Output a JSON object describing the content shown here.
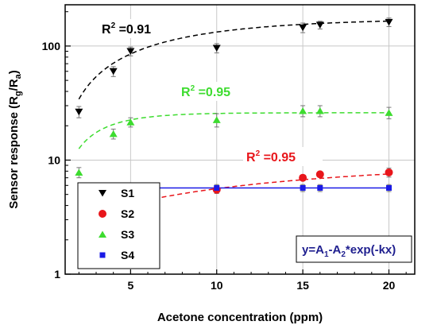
{
  "chart_data": {
    "type": "scatter",
    "title": "",
    "xlabel": "Acetone concentration (ppm)",
    "ylabel": {
      "main": "Sensor response (R",
      "sub1": "g",
      "mid": "/R",
      "sub2": "a",
      "end": ")"
    },
    "x_ticks": [
      5,
      10,
      15,
      20
    ],
    "y_ticks": [
      {
        "value": 1,
        "label": "1"
      },
      {
        "value": 10,
        "label": "10"
      },
      {
        "value": 100,
        "label": "100"
      }
    ],
    "xlim": [
      1.2,
      21.5
    ],
    "ylim": [
      1,
      230
    ],
    "y_scale": "log",
    "grid": true,
    "legend_position": "bottom-left",
    "series": [
      {
        "name": "S1",
        "color": "#000000",
        "marker": "triangle-down",
        "x": [
          2,
          4,
          5,
          10,
          15,
          16,
          20
        ],
        "y": [
          26.5,
          60,
          90,
          96,
          145,
          153,
          162
        ],
        "err": [
          3,
          6,
          8,
          9,
          14,
          12,
          14
        ],
        "fit": {
          "A1": 175,
          "A2": 190,
          "k": 0.15,
          "x_start": 2
        },
        "r2_label": {
          "prefix": "R",
          "sup": "2",
          "value": " =0.91"
        }
      },
      {
        "name": "S2",
        "color": "#e8161b",
        "marker": "circle",
        "x": [
          10,
          15,
          16,
          20
        ],
        "y": [
          5.5,
          7.0,
          7.5,
          7.8
        ],
        "err": [
          0.4,
          0.4,
          0.4,
          0.7
        ],
        "fit": {
          "A1": 9.9,
          "A2": 7.8,
          "k": 0.06,
          "x_start": 5
        },
        "r2_label": {
          "prefix": "R",
          "sup": "2",
          "value": " =0.95"
        }
      },
      {
        "name": "S3",
        "color": "#3ddc2f",
        "marker": "triangle-up",
        "x": [
          2,
          4,
          5,
          10,
          15,
          16,
          20
        ],
        "y": [
          7.8,
          17,
          21.5,
          22.5,
          27,
          27,
          26
        ],
        "err": [
          0.8,
          1.7,
          2,
          3,
          3,
          3,
          3
        ],
        "fit": {
          "A1": 26,
          "A2": 33,
          "k": 0.45,
          "x_start": 2
        },
        "r2_label": {
          "prefix": "R",
          "sup": "2",
          "value": " =0.95"
        }
      },
      {
        "name": "S4",
        "color": "#1a1ae6",
        "marker": "square",
        "x": [
          10,
          15,
          16,
          20
        ],
        "y": [
          5.7,
          5.7,
          5.7,
          5.7
        ],
        "err": [
          0.4,
          0.4,
          0.4,
          0.4
        ],
        "fit": {
          "A1": 5.7,
          "A2": 0,
          "k": 0,
          "x_start": 5
        }
      }
    ],
    "equation": {
      "a": "y=A",
      "sub1": "1",
      "b": "-A",
      "sub2": "2",
      "c": "*exp(-kx)"
    }
  }
}
